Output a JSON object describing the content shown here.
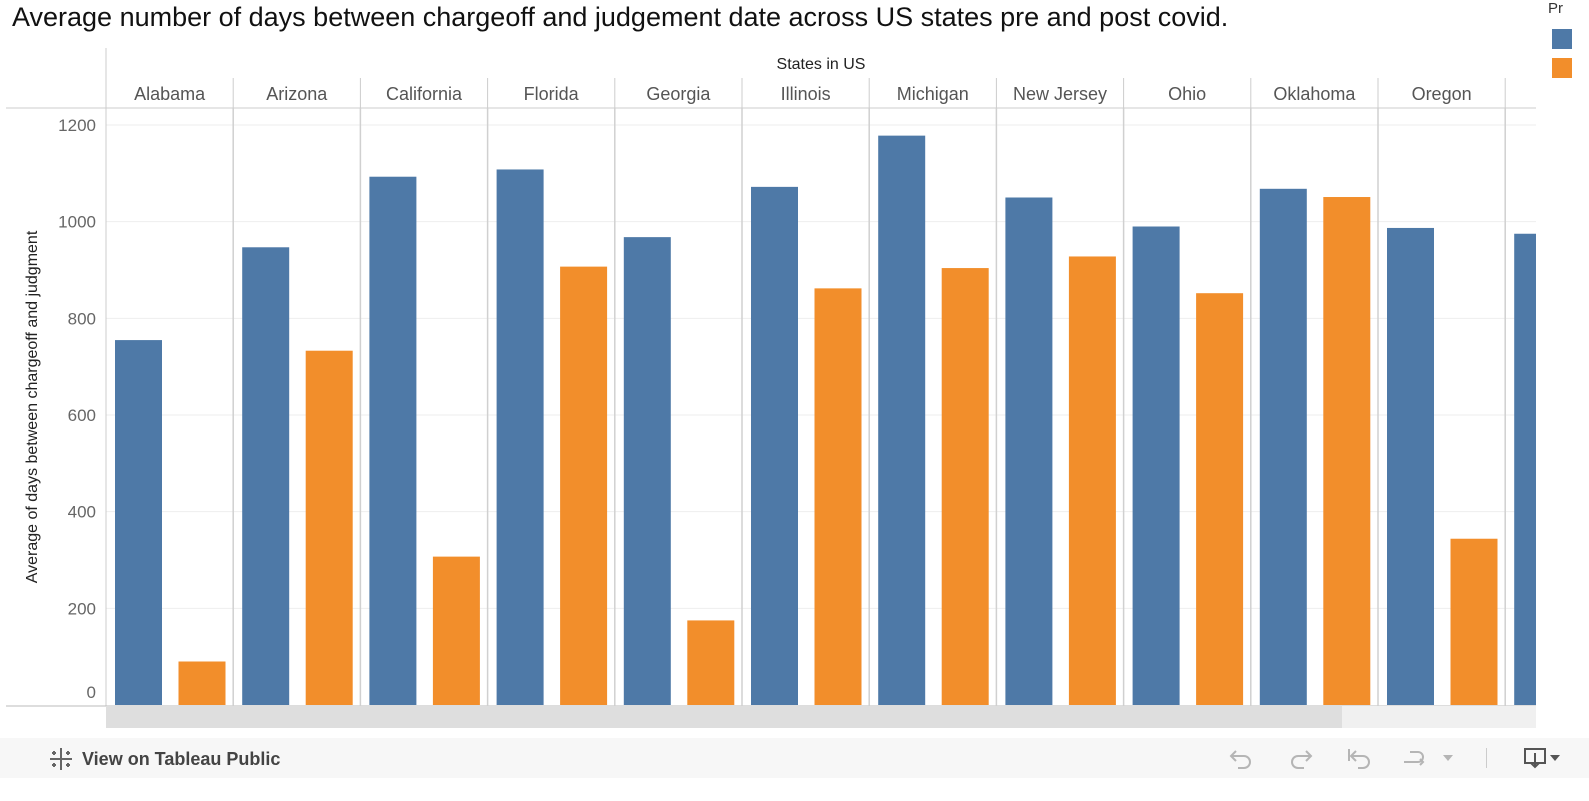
{
  "title": "Average number of days between chargeoff and judgement date across US states pre and post covid.",
  "legend": {
    "title": "Pr",
    "colors": [
      "#4e79a7",
      "#f28e2b"
    ]
  },
  "footer": {
    "link_label": "View on Tableau Public",
    "icons": [
      "undo-icon",
      "redo-icon",
      "revert-icon",
      "refresh-icon",
      "download-icon"
    ]
  },
  "chart_data": {
    "type": "bar",
    "title": "Average number of days between chargeoff and judgement date across US states pre and post covid.",
    "xlabel": "States in US",
    "ylabel": "Average of days between chargeoff and judgment",
    "ylim": [
      0,
      1200
    ],
    "yticks": [
      0,
      200,
      400,
      600,
      800,
      1000,
      1200
    ],
    "grid": true,
    "categories": [
      "Alabama",
      "Arizona",
      "California",
      "Florida",
      "Georgia",
      "Illinois",
      "Michigan",
      "New Jersey",
      "Ohio",
      "Oklahoma",
      "Oregon"
    ],
    "series": [
      {
        "values": [
          755,
          947,
          1093,
          1108,
          968,
          1072,
          1178,
          1050,
          990,
          1068,
          987
        ],
        "color": "#4e79a7"
      },
      {
        "values": [
          90,
          733,
          307,
          907,
          175,
          862,
          904,
          928,
          852,
          1051,
          344
        ],
        "color": "#f28e2b"
      }
    ],
    "partial_bar_value": 975
  }
}
